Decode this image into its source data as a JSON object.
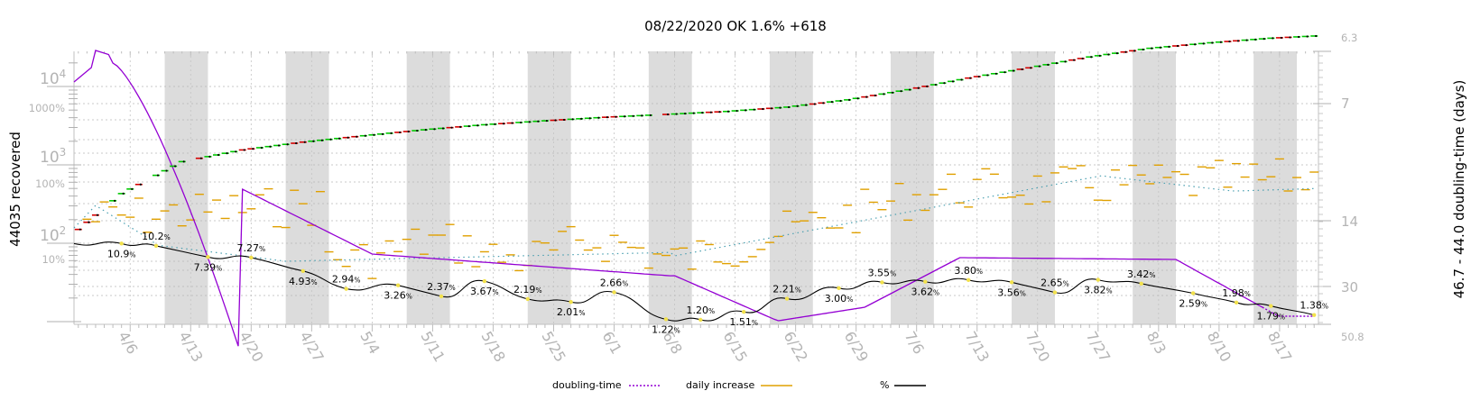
{
  "chart_data": {
    "type": "line",
    "title": "08/22/2020 OK 1.6% +618",
    "ylabel_left": "44035 recovered",
    "ylabel_right": "46.7 - 44.0 doubling-time (days)",
    "yaxis_left": {
      "scale": "log",
      "count_ticks": [
        "10^2",
        "10^3",
        "10^4"
      ],
      "percent_ticks": [
        "10%",
        "100%",
        "1000%"
      ]
    },
    "yaxis_right": {
      "ticks": [
        "6.3",
        "7",
        "14",
        "30",
        "50.8"
      ]
    },
    "x_tick_labels": [
      "4/6",
      "4/13",
      "4/20",
      "4/27",
      "5/4",
      "5/11",
      "5/18",
      "5/25",
      "6/1",
      "6/8",
      "6/15",
      "6/22",
      "6/29",
      "7/6",
      "7/13",
      "7/20",
      "7/27",
      "8/3",
      "8/10",
      "8/17"
    ],
    "legend": [
      {
        "name": "doubling-time",
        "color": "#9400d3",
        "style": "dotted"
      },
      {
        "name": "daily increase",
        "color": "#e0a000",
        "style": "solid"
      },
      {
        "name": "%",
        "color": "#000000",
        "style": "solid"
      }
    ],
    "legend_position": "bottom",
    "weekend_shading": true,
    "grid": true,
    "series": {
      "recovered": {
        "x": [
          "4/1",
          "4/6",
          "4/13",
          "4/20",
          "4/27",
          "5/4",
          "5/11",
          "5/18",
          "5/25",
          "6/1",
          "6/8",
          "6/15",
          "6/22",
          "6/29",
          "7/6",
          "7/13",
          "7/20",
          "7/27",
          "8/3",
          "8/10",
          "8/17",
          "8/22"
        ],
        "values": [
          150,
          430,
          1100,
          1550,
          1950,
          2350,
          2800,
          3250,
          3650,
          4050,
          4400,
          4800,
          5450,
          6750,
          9100,
          12800,
          17300,
          23800,
          30700,
          36100,
          41300,
          44035
        ]
      },
      "percent_labels": [
        {
          "x": "4/6",
          "value": "10.9"
        },
        {
          "x": "4/10",
          "value": "10.2"
        },
        {
          "x": "4/16",
          "value": "7.39"
        },
        {
          "x": "4/21",
          "value": "7.27"
        },
        {
          "x": "4/27",
          "value": "4.93"
        },
        {
          "x": "5/2",
          "value": "2.94"
        },
        {
          "x": "5/8",
          "value": "3.26"
        },
        {
          "x": "5/13",
          "value": "2.37"
        },
        {
          "x": "5/18",
          "value": "3.67"
        },
        {
          "x": "5/23",
          "value": "2.19"
        },
        {
          "x": "5/28",
          "value": "2.01"
        },
        {
          "x": "6/2",
          "value": "2.66"
        },
        {
          "x": "6/8",
          "value": "1.22"
        },
        {
          "x": "6/12",
          "value": "1.20"
        },
        {
          "x": "6/17",
          "value": "1.51"
        },
        {
          "x": "6/22",
          "value": "2.21"
        },
        {
          "x": "6/28",
          "value": "3.00"
        },
        {
          "x": "7/3",
          "value": "3.55"
        },
        {
          "x": "7/8",
          "value": "3.62"
        },
        {
          "x": "7/13",
          "value": "3.80"
        },
        {
          "x": "7/18",
          "value": "3.56"
        },
        {
          "x": "7/23",
          "value": "2.65"
        },
        {
          "x": "7/28",
          "value": "3.82"
        },
        {
          "x": "8/2",
          "value": "3.42"
        },
        {
          "x": "8/8",
          "value": "2.59"
        },
        {
          "x": "8/13",
          "value": "1.98"
        },
        {
          "x": "8/17",
          "value": "1.79"
        },
        {
          "x": "8/22",
          "value": "1.38"
        }
      ]
    }
  }
}
